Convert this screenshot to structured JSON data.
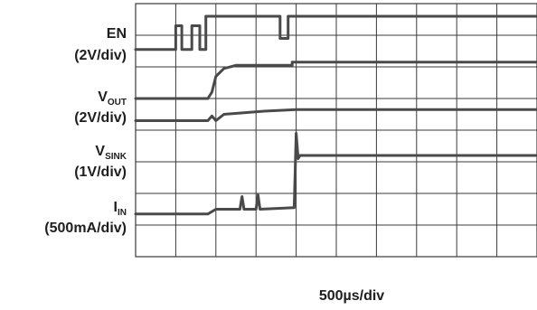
{
  "chart_data": {
    "type": "line",
    "title": "",
    "xlabel": "500µs/div",
    "ylabel": "",
    "grid": true,
    "divisions": {
      "x": 10,
      "y": 8
    },
    "xlim": [
      0,
      10
    ],
    "ylim": [
      0,
      8
    ],
    "units": {
      "x": "divisions (500µs/div)",
      "y": "divisions"
    },
    "channels": [
      {
        "name_main": "EN",
        "name_sub": "",
        "scale": "(2V/div)"
      },
      {
        "name_main": "V",
        "name_sub": "OUT",
        "scale": "(2V/div)"
      },
      {
        "name_main": "V",
        "name_sub": "SINK",
        "scale": "(1V/div)"
      },
      {
        "name_main": "I",
        "name_sub": "IN",
        "scale": "(500mA/div)"
      }
    ],
    "series": [
      {
        "name": "EN",
        "x": [
          0,
          1.0,
          1.0,
          1.15,
          1.15,
          1.4,
          1.4,
          1.6,
          1.6,
          1.75,
          1.75,
          3.6,
          3.6,
          3.8,
          3.8,
          10
        ],
        "y": [
          6.55,
          6.55,
          7.3,
          7.3,
          6.55,
          6.55,
          7.3,
          7.3,
          6.55,
          6.55,
          7.6,
          7.6,
          6.9,
          6.9,
          7.6,
          7.6
        ]
      },
      {
        "name": "VOUT",
        "x": [
          0,
          1.8,
          1.9,
          2.0,
          2.2,
          2.5,
          3.5,
          3.9,
          3.9,
          10
        ],
        "y": [
          5.0,
          5.0,
          5.2,
          5.7,
          5.95,
          6.05,
          6.05,
          6.05,
          6.15,
          6.15
        ]
      },
      {
        "name": "VSINK",
        "x": [
          0,
          1.8,
          1.9,
          2.0,
          2.2,
          3.2,
          4.0,
          10
        ],
        "y": [
          4.3,
          4.3,
          4.45,
          4.3,
          4.5,
          4.6,
          4.65,
          4.65
        ]
      },
      {
        "name": "IIN",
        "x": [
          0,
          1.8,
          2.0,
          2.6,
          2.65,
          2.7,
          3.0,
          3.05,
          3.1,
          3.95,
          4.0,
          4.05,
          4.1,
          10
        ],
        "y": [
          1.35,
          1.35,
          1.5,
          1.5,
          1.9,
          1.5,
          1.5,
          1.95,
          1.5,
          1.55,
          3.9,
          3.1,
          3.2,
          3.2
        ]
      }
    ]
  }
}
